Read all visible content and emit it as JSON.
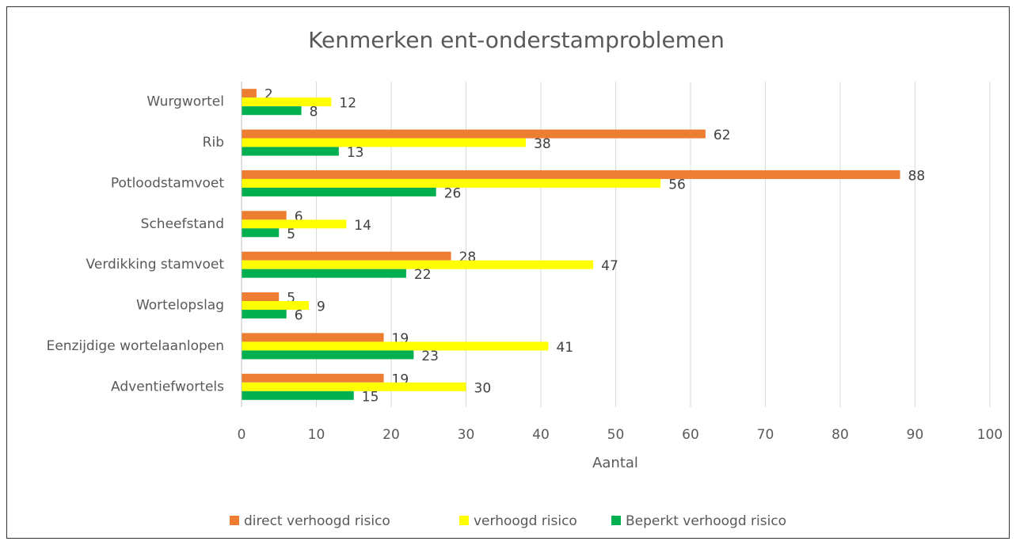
{
  "chart_data": {
    "type": "bar",
    "orientation": "horizontal",
    "title": "Kenmerken ent-onderstamproblemen",
    "x_label": "Aantal",
    "categories": [
      "Wurgwortel",
      "Rib",
      "Potloodstamvoet",
      "Scheefstand",
      "Verdikking stamvoet",
      "Wortelopslag",
      "Eenzijdige wortelaanlopen",
      "Adventiefwortels"
    ],
    "series": [
      {
        "name": "direct verhoogd risico",
        "color": "#ed7d31",
        "values": [
          2,
          62,
          88,
          6,
          28,
          5,
          19,
          19
        ]
      },
      {
        "name": "verhoogd risico",
        "color": "#ffff00",
        "values": [
          12,
          38,
          56,
          14,
          47,
          9,
          41,
          30
        ]
      },
      {
        "name": "Beperkt verhoogd risico",
        "color": "#00b050",
        "values": [
          8,
          13,
          26,
          5,
          22,
          6,
          23,
          15
        ]
      }
    ],
    "xlim": [
      0,
      100
    ],
    "xticks": [
      0,
      10,
      20,
      30,
      40,
      50,
      60,
      70,
      80,
      90,
      100
    ],
    "grid": true,
    "legend": "bottom"
  }
}
